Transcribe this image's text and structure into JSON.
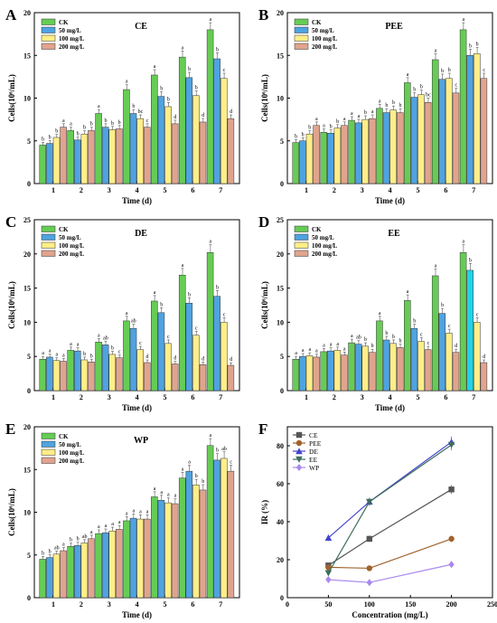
{
  "colors": {
    "ck": "#66cc55",
    "c50": "#4fa3e0",
    "c100": "#ffee88",
    "c200": "#e0a48e",
    "cyan": "#22d3e6"
  },
  "legend_bars": [
    "CK",
    "50 mg/L",
    "100 mg/L",
    "200 mg/L"
  ],
  "chart_data": [
    {
      "type": "bar",
      "panel_label": "A",
      "title": "CE",
      "xlabel": "Time (d)",
      "ylabel": "Cells(10⁶/mL)",
      "ylim": [
        0,
        20
      ],
      "yticks": [
        0,
        5,
        10,
        15,
        20
      ],
      "categories": [
        "1",
        "2",
        "3",
        "4",
        "5",
        "6",
        "7"
      ],
      "series": [
        {
          "name": "CK",
          "values": [
            4.5,
            6.2,
            8.2,
            11.0,
            12.7,
            14.8,
            18.0
          ],
          "labels": [
            "b",
            "a",
            "a",
            "a",
            "a",
            "a",
            "a"
          ]
        },
        {
          "name": "50 mg/L",
          "values": [
            4.7,
            5.1,
            6.6,
            8.2,
            10.2,
            12.4,
            14.6
          ],
          "labels": [
            "b",
            "b",
            "b",
            "b",
            "b",
            "b",
            "b"
          ]
        },
        {
          "name": "100 mg/L",
          "values": [
            5.4,
            5.8,
            6.3,
            7.6,
            9.0,
            10.3,
            12.3
          ],
          "labels": [
            "b",
            "b",
            "b",
            "bc",
            "b",
            "b",
            "c"
          ]
        },
        {
          "name": "200 mg/L",
          "values": [
            6.6,
            6.2,
            6.4,
            6.6,
            7.0,
            7.2,
            7.6
          ],
          "labels": [
            "a",
            "b",
            "b",
            "c",
            "d",
            "d",
            "d"
          ]
        }
      ]
    },
    {
      "type": "bar",
      "panel_label": "B",
      "title": "PEE",
      "xlabel": "Time (d)",
      "ylabel": "Cells(10⁶/mL)",
      "ylim": [
        0,
        20
      ],
      "yticks": [
        0,
        5,
        10,
        15,
        20
      ],
      "categories": [
        "1",
        "2",
        "3",
        "4",
        "5",
        "6",
        "7"
      ],
      "series": [
        {
          "name": "CK",
          "values": [
            4.8,
            6.0,
            7.4,
            8.8,
            11.8,
            14.5,
            18.0
          ],
          "labels": [
            "b",
            "a",
            "a",
            "a",
            "a",
            "a",
            "a"
          ]
        },
        {
          "name": "50 mg/L",
          "values": [
            5.0,
            5.9,
            7.1,
            8.3,
            10.1,
            12.2,
            15.0
          ],
          "labels": [
            "b",
            "b",
            "a",
            "b",
            "b",
            "b",
            "b"
          ]
        },
        {
          "name": "100 mg/L",
          "values": [
            5.8,
            6.5,
            7.5,
            8.6,
            10.4,
            12.3,
            15.2
          ],
          "labels": [
            "b",
            "b",
            "b",
            "b",
            "b",
            "b",
            "b"
          ]
        },
        {
          "name": "200 mg/L",
          "values": [
            6.8,
            6.8,
            7.6,
            8.3,
            9.5,
            10.6,
            12.3
          ],
          "labels": [
            "a",
            "a",
            "a",
            "b",
            "bc",
            "c",
            "c"
          ]
        }
      ]
    },
    {
      "type": "bar",
      "panel_label": "C",
      "title": "DE",
      "xlabel": "Time (d)",
      "ylabel": "Cells(10⁶/mL)",
      "ylim": [
        0,
        25
      ],
      "yticks": [
        0,
        5,
        10,
        15,
        20,
        25
      ],
      "categories": [
        "1",
        "2",
        "3",
        "4",
        "5",
        "6",
        "7"
      ],
      "series": [
        {
          "name": "CK",
          "values": [
            4.6,
            5.9,
            7.1,
            10.2,
            13.1,
            16.9,
            20.2
          ],
          "labels": [
            "a",
            "a",
            "a",
            "a",
            "a",
            "a",
            "a"
          ]
        },
        {
          "name": "50 mg/L",
          "values": [
            4.9,
            5.8,
            6.7,
            9.1,
            11.4,
            12.8,
            13.8
          ],
          "labels": [
            "a",
            "a",
            "ab",
            "ab",
            "b",
            "b",
            "b"
          ]
        },
        {
          "name": "100 mg/L",
          "values": [
            4.4,
            4.5,
            5.3,
            6.0,
            6.9,
            8.1,
            10.0
          ],
          "labels": [
            "a",
            "b",
            "b",
            "c",
            "c",
            "c",
            "c"
          ]
        },
        {
          "name": "200 mg/L",
          "values": [
            4.3,
            4.2,
            4.8,
            4.1,
            3.9,
            3.8,
            3.7
          ],
          "labels": [
            "a",
            "b",
            "c",
            "d",
            "d",
            "d",
            "d"
          ]
        }
      ]
    },
    {
      "type": "bar",
      "panel_label": "D",
      "title": "EE",
      "xlabel": "Time (d)",
      "ylabel": "Cells(10⁶/mL)",
      "ylim": [
        0,
        25
      ],
      "yticks": [
        0,
        5,
        10,
        15,
        20,
        25
      ],
      "categories": [
        "1",
        "2",
        "3",
        "4",
        "5",
        "6",
        "7"
      ],
      "series": [
        {
          "name": "CK",
          "values": [
            4.6,
            5.7,
            7.0,
            10.2,
            13.2,
            16.8,
            20.2
          ],
          "labels": [
            "a",
            "a",
            "a",
            "a",
            "a",
            "a",
            "a"
          ]
        },
        {
          "name": "50 mg/L",
          "values": [
            5.0,
            5.8,
            6.8,
            7.4,
            9.1,
            11.3,
            17.6
          ],
          "labels": [
            "a",
            "a",
            "ab",
            "b",
            "b",
            "b",
            "b"
          ]
        },
        {
          "name": "100 mg/L",
          "values": [
            5.1,
            5.9,
            6.5,
            6.9,
            7.2,
            8.4,
            10.0
          ],
          "labels": [
            "a",
            "a",
            "b",
            "b",
            "c",
            "c",
            "c"
          ]
        },
        {
          "name": "200 mg/L",
          "values": [
            4.9,
            5.2,
            5.6,
            6.3,
            6.0,
            5.6,
            4.1
          ],
          "labels": [
            "a",
            "a",
            "b",
            "b",
            "c",
            "d",
            "d"
          ]
        }
      ]
    },
    {
      "type": "bar",
      "panel_label": "E",
      "title": "WP",
      "xlabel": "Time (d)",
      "ylabel": "Cells(10⁶/mL)",
      "ylim": [
        0,
        20
      ],
      "yticks": [
        0,
        5,
        10,
        15,
        20
      ],
      "categories": [
        "1",
        "2",
        "3",
        "4",
        "5",
        "6",
        "7"
      ],
      "series": [
        {
          "name": "CK",
          "values": [
            4.5,
            6.0,
            7.5,
            9.0,
            11.8,
            14.0,
            17.8
          ],
          "labels": [
            "b",
            "b",
            "a",
            "a",
            "a",
            "a",
            "a"
          ]
        },
        {
          "name": "50 mg/L",
          "values": [
            4.7,
            6.1,
            7.6,
            9.3,
            11.4,
            14.8,
            16.1
          ],
          "labels": [
            "b",
            "b",
            "a",
            "a",
            "a",
            "a",
            "b"
          ]
        },
        {
          "name": "100 mg/L",
          "values": [
            5.1,
            6.4,
            7.8,
            9.2,
            11.1,
            13.2,
            16.3
          ],
          "labels": [
            "ab",
            "ab",
            "a",
            "a",
            "a",
            "b",
            "ab"
          ]
        },
        {
          "name": "200 mg/L",
          "values": [
            5.5,
            6.9,
            8.0,
            9.2,
            11.0,
            12.6,
            14.8
          ],
          "labels": [
            "a",
            "a",
            "a",
            "a",
            "a",
            "b",
            "c"
          ]
        }
      ]
    },
    {
      "type": "line",
      "panel_label": "F",
      "xlabel": "Concentration (mg/L)",
      "ylabel": "IR (%)",
      "xlim": [
        0,
        250
      ],
      "xticks": [
        0,
        50,
        100,
        150,
        200,
        250
      ],
      "ylim": [
        0,
        90
      ],
      "yticks": [
        0,
        20,
        40,
        60,
        80
      ],
      "x": [
        50,
        100,
        200
      ],
      "series": [
        {
          "name": "CE",
          "values": [
            17.0,
            31.0,
            57.0
          ],
          "color": "#555555",
          "marker": "square"
        },
        {
          "name": "PEE",
          "values": [
            16.0,
            15.5,
            31.0
          ],
          "color": "#a0622c",
          "marker": "circle"
        },
        {
          "name": "DE",
          "values": [
            31.5,
            50.5,
            82.0
          ],
          "color": "#4444cc",
          "marker": "triangle-up"
        },
        {
          "name": "EE",
          "values": [
            13.0,
            50.5,
            80.5
          ],
          "color": "#3e6e5a",
          "marker": "triangle-down"
        },
        {
          "name": "WP",
          "values": [
            9.5,
            8.0,
            17.5
          ],
          "color": "#aa88ee",
          "marker": "diamond"
        }
      ]
    }
  ]
}
